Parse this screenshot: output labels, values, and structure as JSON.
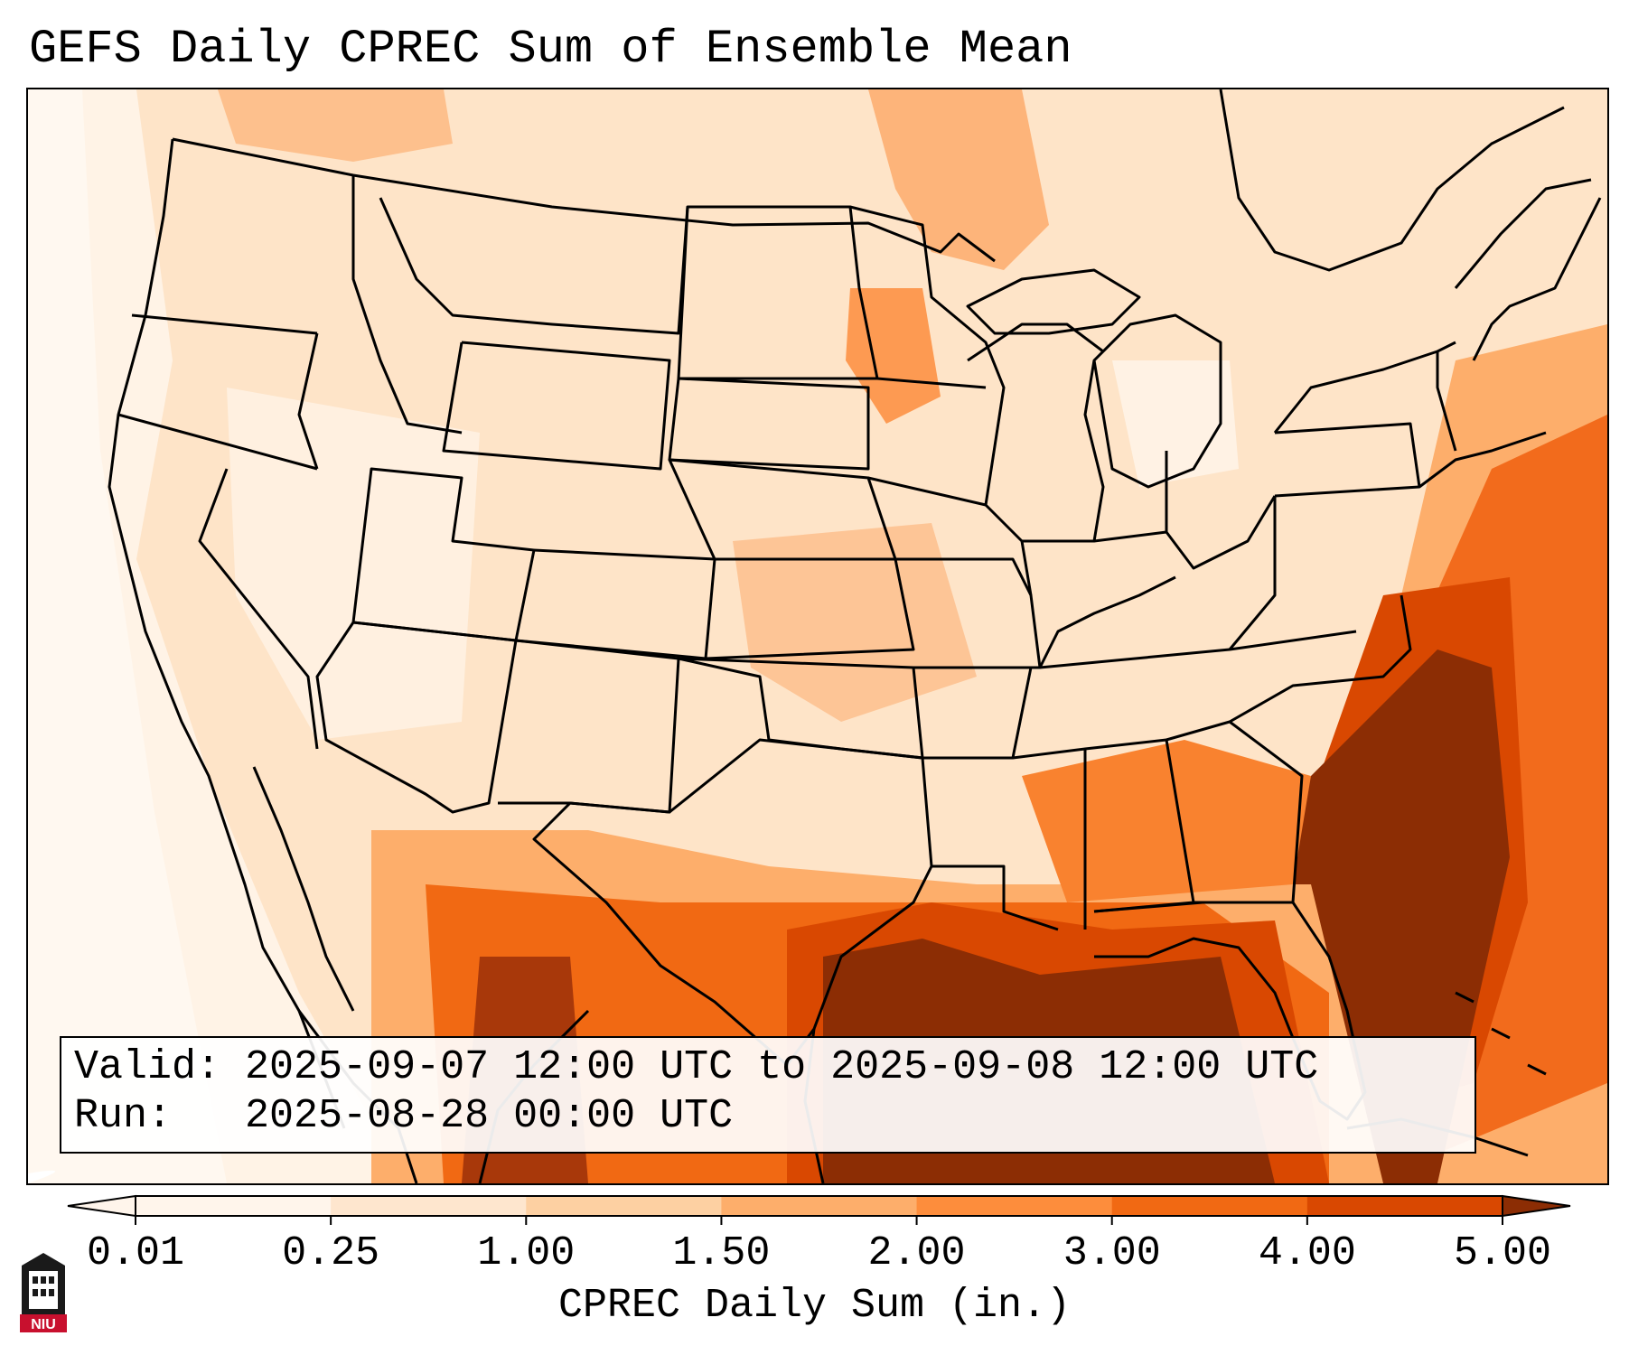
{
  "title": "GEFS Daily CPREC Sum of Ensemble Mean",
  "info": {
    "valid_label": "Valid:",
    "valid_value": "2025-09-07 12:00 UTC to 2025-09-08 12:00 UTC",
    "run_label": "Run:",
    "run_value": "2025-08-28 00:00 UTC"
  },
  "colorbar": {
    "label": "CPREC Daily Sum (in.)",
    "ticks": [
      "0.01",
      "0.25",
      "1.00",
      "1.50",
      "2.00",
      "3.00",
      "4.00",
      "5.00"
    ],
    "colors": [
      "#fff5eb",
      "#fee6ce",
      "#fdd0a2",
      "#fdae6b",
      "#fd8d3c",
      "#f16913",
      "#d94801",
      "#8c2d04"
    ],
    "extend": "both"
  },
  "logo": {
    "text": "NIU",
    "color": "#c8102e"
  }
}
